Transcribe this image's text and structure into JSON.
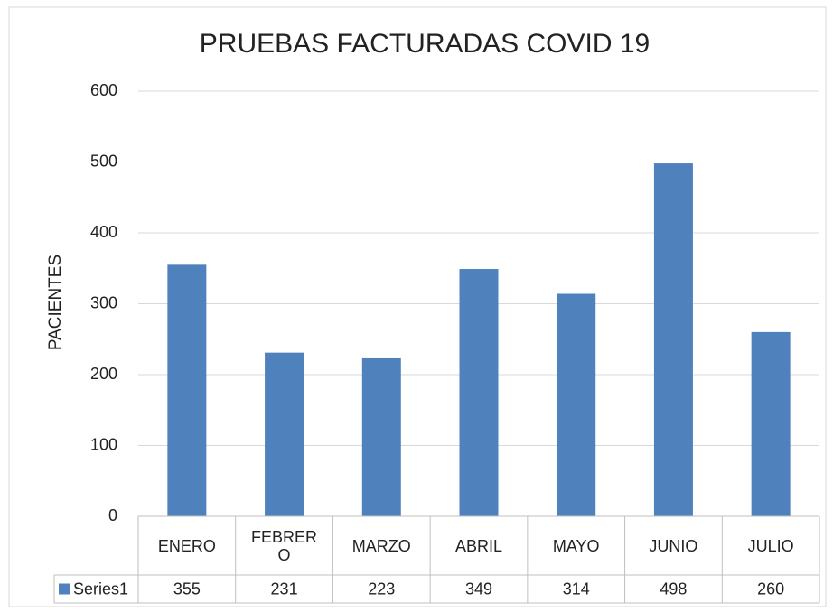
{
  "chart_data": {
    "type": "bar",
    "title": "PRUEBAS FACTURADAS COVID 19",
    "y_label": "PACIENTES",
    "categories": [
      "ENERO",
      "FEBRERO",
      "MARZO",
      "ABRIL",
      "MAYO",
      "JUNIO",
      "JULIO"
    ],
    "series": [
      {
        "name": "Series1",
        "color": "#4f81bd",
        "values": [
          355,
          231,
          223,
          349,
          314,
          498,
          260
        ]
      }
    ],
    "ylim": [
      0,
      600
    ],
    "yticks": [
      0,
      100,
      200,
      300,
      400,
      500,
      600
    ],
    "grid": true,
    "data_table": true
  }
}
